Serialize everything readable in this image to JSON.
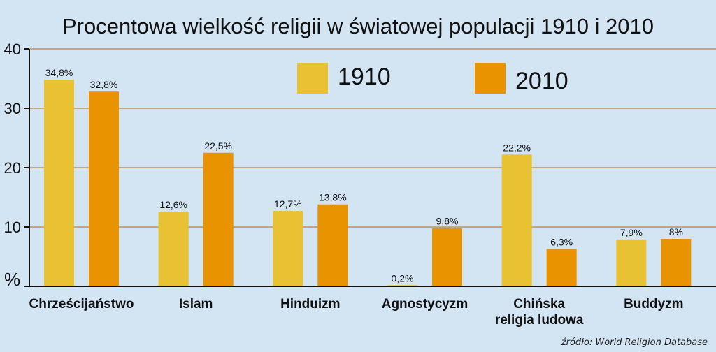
{
  "chart_data": {
    "type": "bar",
    "title": "Procentowa wielkość religii w światowej populacji 1910 i 2010",
    "ylabel": "%",
    "ylim": [
      0,
      40
    ],
    "yticks": [
      0,
      10,
      20,
      30,
      40
    ],
    "ytick_labels": [
      "",
      "10",
      "20",
      "30",
      "40"
    ],
    "grid": true,
    "legend_position": "top-center",
    "categories": [
      [
        "Chrześcijaństwo"
      ],
      [
        "Islam"
      ],
      [
        "Hinduizm"
      ],
      [
        "Agnostycyzm"
      ],
      [
        "Chińska",
        "religia ludowa"
      ],
      [
        "Buddyzm"
      ]
    ],
    "series": [
      {
        "name": "1910",
        "color": "#e8c232",
        "values": [
          34.8,
          12.6,
          12.7,
          0.2,
          22.2,
          7.9
        ],
        "labels": [
          "34,8%",
          "12,6%",
          "12,7%",
          "0,2%",
          "22,2%",
          "7,9%"
        ]
      },
      {
        "name": "2010",
        "color": "#e99300",
        "values": [
          32.8,
          22.5,
          13.8,
          9.8,
          6.3,
          8.0
        ],
        "labels": [
          "32,8%",
          "22,5%",
          "13,8%",
          "9,8%",
          "6,3%",
          "8%"
        ]
      }
    ],
    "source": "źródło: World Religion Database"
  }
}
